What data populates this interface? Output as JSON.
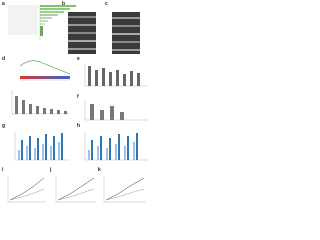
{
  "panels": [
    {
      "label": "a"
    },
    {
      "label": "b"
    },
    {
      "label": "c"
    },
    {
      "label": "d"
    },
    {
      "label": "e"
    },
    {
      "label": "f"
    },
    {
      "label": "g"
    },
    {
      "label": "h"
    },
    {
      "label": "i"
    },
    {
      "label": "j"
    },
    {
      "label": "k"
    }
  ]
}
